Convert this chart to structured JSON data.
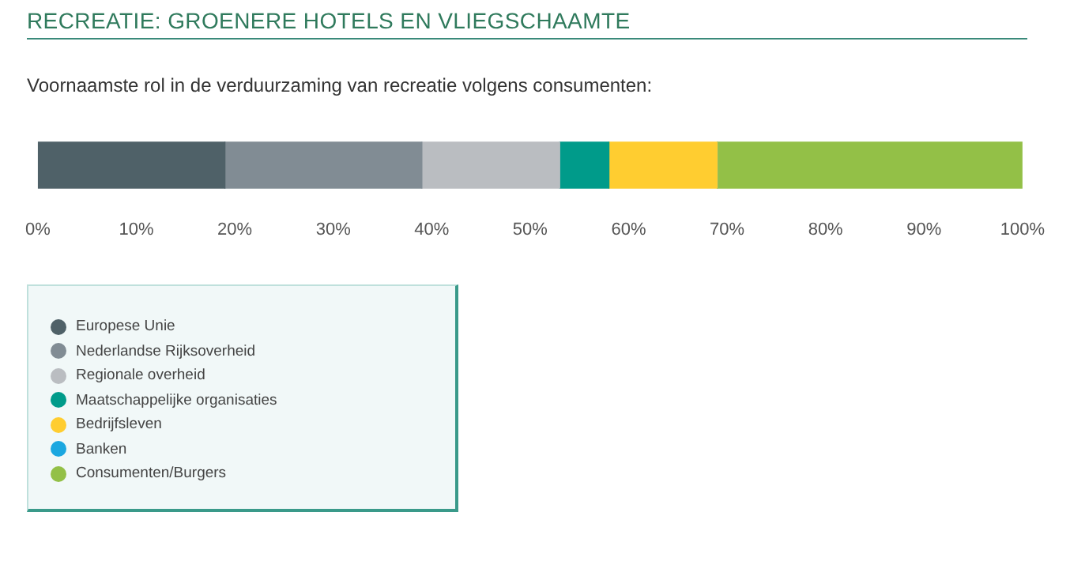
{
  "chart_data": {
    "type": "bar",
    "orientation": "horizontal",
    "stacked": true,
    "title": "RECREATIE: GROENERE HOTELS EN VLIEGSCHAAMTE",
    "subtitle": "Voornaamste rol in de verduurzaming van recreatie volgens consumenten:",
    "categories": [
      null
    ],
    "series": [
      {
        "name": "Europese Unie",
        "color": "#4f6168",
        "values": [
          19
        ]
      },
      {
        "name": "Nederlandse Rijksoverheid",
        "color": "#818c94",
        "values": [
          20
        ]
      },
      {
        "name": "Regionale overheid",
        "color": "#babdc1",
        "values": [
          14
        ]
      },
      {
        "name": "Maatschappelijke organisaties",
        "color": "#009b8a",
        "values": [
          5
        ]
      },
      {
        "name": "Bedrijfsleven",
        "color": "#ffcd30",
        "values": [
          11
        ]
      },
      {
        "name": "Banken",
        "color": "#1ba7e0",
        "values": [
          0
        ]
      },
      {
        "name": "Consumenten/Burgers",
        "color": "#93c047",
        "values": [
          31
        ]
      }
    ],
    "xlim": [
      0,
      100
    ],
    "xticks": [
      {
        "value": 0,
        "label": "0%"
      },
      {
        "value": 10,
        "label": "10%"
      },
      {
        "value": 20,
        "label": "20%"
      },
      {
        "value": 30,
        "label": "30%"
      },
      {
        "value": 40,
        "label": "40%"
      },
      {
        "value": 50,
        "label": "50%"
      },
      {
        "value": 60,
        "label": "60%"
      },
      {
        "value": 70,
        "label": "70%"
      },
      {
        "value": 80,
        "label": "80%"
      },
      {
        "value": 90,
        "label": "90%"
      },
      {
        "value": 100,
        "label": "100%"
      }
    ],
    "grid": false,
    "legend": "bottom left"
  }
}
